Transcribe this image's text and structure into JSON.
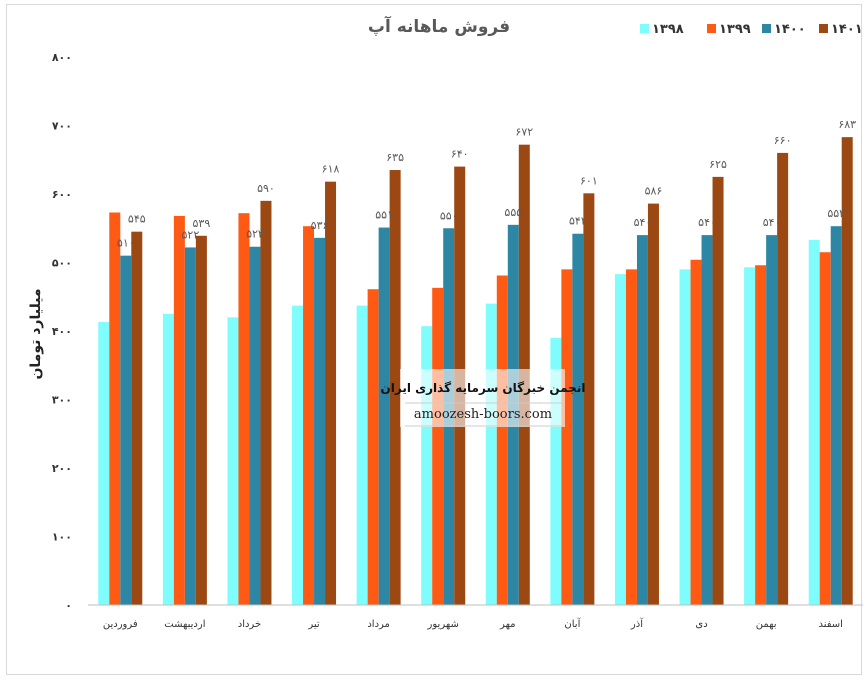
{
  "chart_data": {
    "type": "bar",
    "title": "فروش ماهانه آپ",
    "ylabel": "میلیارد تومان",
    "xlabel": "",
    "ylim": [
      0,
      800
    ],
    "yticks": [
      "۰",
      "۱۰۰",
      "۲۰۰",
      "۳۰۰",
      "۴۰۰",
      "۵۰۰",
      "۶۰۰",
      "۷۰۰",
      "۸۰۰"
    ],
    "ytick_values": [
      0,
      100,
      200,
      300,
      400,
      500,
      600,
      700,
      800
    ],
    "grid": false,
    "legend_position": "top-right",
    "categories": [
      "فروردین",
      "اردیبهشت",
      "خرداد",
      "تیر",
      "مرداد",
      "شهریور",
      "مهر",
      "آبان",
      "آذر",
      "دی",
      "بهمن",
      "اسفند"
    ],
    "series": [
      {
        "name": "۱۳۹۸",
        "color": "#7ffcfc",
        "values": [
          413,
          425,
          420,
          437,
          437,
          407,
          440,
          390,
          483,
          490,
          493,
          533
        ]
      },
      {
        "name": "۱۳۹۹",
        "color": "#ff5a14",
        "values": [
          573,
          568,
          572,
          553,
          461,
          463,
          481,
          490,
          490,
          504,
          496,
          515
        ]
      },
      {
        "name": "۱۴۰۰",
        "color": "#2e86a5",
        "values": [
          510,
          522,
          523,
          536,
          551,
          550,
          555,
          542,
          540,
          540,
          540,
          553
        ],
        "labels": [
          "۵۱۰",
          "۵۲۲",
          "۵۲۳",
          "۵۳۶",
          "۵۵۱",
          "۵۵۰",
          "۵۵۵",
          "۵۴۲",
          "۵۴۰",
          "۵۴۰",
          "۵۴۰",
          "۵۵۳"
        ]
      },
      {
        "name": "۱۴۰۱",
        "color": "#9c4812",
        "values": [
          545,
          539,
          590,
          618,
          635,
          640,
          672,
          601,
          586,
          625,
          660,
          683
        ],
        "labels": [
          "۵۴۵",
          "۵۳۹",
          "۵۹۰",
          "۶۱۸",
          "۶۳۵",
          "۶۴۰",
          "۶۷۲",
          "۶۰۱",
          "۵۸۶",
          "۶۲۵",
          "۶۶۰",
          "۶۸۳"
        ]
      }
    ],
    "watermark": {
      "title": "انجمن خبرگان سرمایه گذاری ایران",
      "url": "amoozesh-boors.com"
    }
  }
}
